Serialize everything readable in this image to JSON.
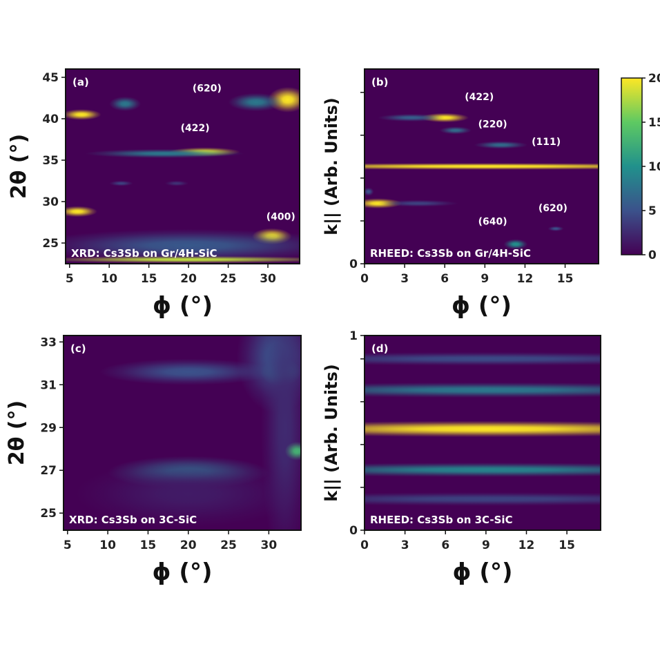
{
  "colors": {
    "colormap": [
      "#440154",
      "#3b528b",
      "#21918c",
      "#5ec962",
      "#fde725"
    ],
    "background": "#ffffff",
    "label_text": "#ffffff"
  },
  "colorbar": {
    "min": 0,
    "max": 20,
    "ticks": [
      "20",
      "15",
      "10",
      "5",
      "0"
    ]
  },
  "chart_data": [
    {
      "type": "heatmap",
      "panel_label": "(a)",
      "inset_label": "XRD: Cs3Sb on Gr/4H-SiC",
      "xlabel": "ϕ (°)",
      "ylabel": "2θ (°)",
      "xlim": [
        4.5,
        34
      ],
      "ylim": [
        22.5,
        46
      ],
      "xticks": [
        "5",
        "10",
        "15",
        "20",
        "25",
        "30"
      ],
      "yticks": [
        "25",
        "30",
        "35",
        "40",
        "45"
      ],
      "annotations": [
        {
          "text": "(620)",
          "x": 20.5,
          "y": 43.3
        },
        {
          "text": "(422)",
          "x": 19,
          "y": 38.5
        },
        {
          "text": "(400)",
          "x": 29.8,
          "y": 27.8
        }
      ],
      "features": [
        {
          "x": 22,
          "y": 36,
          "sx": 4.5,
          "sy": 0.25,
          "v": 19
        },
        {
          "x": 17,
          "y": 35.8,
          "sx": 10,
          "sy": 0.25,
          "v": 8
        },
        {
          "x": 6.5,
          "y": 40.5,
          "sx": 2.5,
          "sy": 0.3,
          "v": 20
        },
        {
          "x": 12,
          "y": 41.8,
          "sx": 2,
          "sy": 0.4,
          "v": 8
        },
        {
          "x": 32.5,
          "y": 42.3,
          "sx": 2.5,
          "sy": 0.7,
          "v": 20
        },
        {
          "x": 28.5,
          "y": 42,
          "sx": 3.5,
          "sy": 0.5,
          "v": 8
        },
        {
          "x": 6.0,
          "y": 28.8,
          "sx": 2.5,
          "sy": 0.3,
          "v": 20
        },
        {
          "x": 11.5,
          "y": 32.2,
          "sx": 1.5,
          "sy": 0.15,
          "v": 4
        },
        {
          "x": 18.5,
          "y": 32.2,
          "sx": 1.5,
          "sy": 0.15,
          "v": 3
        },
        {
          "x": 30.5,
          "y": 25.8,
          "sx": 2.5,
          "sy": 0.45,
          "v": 20
        },
        {
          "x": 20,
          "y": 24.7,
          "sx": 20,
          "sy": 0.9,
          "v": 5.5
        },
        {
          "x": 20,
          "y": 23.0,
          "sx": 20,
          "sy": 0.2,
          "v": 18
        }
      ]
    },
    {
      "type": "heatmap",
      "panel_label": "(b)",
      "inset_label": "RHEED: Cs3Sb on Gr/4H-SiC",
      "xlabel": "ϕ (°)",
      "ylabel": "k|| (Arb. Units)",
      "xlim": [
        0,
        17.5
      ],
      "ylim": [
        0,
        1
      ],
      "xticks": [
        "0",
        "3",
        "6",
        "9",
        "12",
        "15"
      ],
      "yticks": [
        "0"
      ],
      "annotations": [
        {
          "text": "(422)",
          "x": 7.5,
          "y": 0.84
        },
        {
          "text": "(220)",
          "x": 8.5,
          "y": 0.7
        },
        {
          "text": "(111)",
          "x": 12.5,
          "y": 0.61
        },
        {
          "text": "(620)",
          "x": 13.0,
          "y": 0.27
        },
        {
          "text": "(640)",
          "x": 8.5,
          "y": 0.2
        }
      ],
      "features": [
        {
          "x": 9,
          "y": 0.5,
          "sx": 20,
          "sy": 0.008,
          "v": 20
        },
        {
          "x": 6.0,
          "y": 0.75,
          "sx": 1.8,
          "sy": 0.011,
          "v": 20
        },
        {
          "x": 3.5,
          "y": 0.75,
          "sx": 2.5,
          "sy": 0.009,
          "v": 6
        },
        {
          "x": 6.8,
          "y": 0.685,
          "sx": 1.2,
          "sy": 0.009,
          "v": 7
        },
        {
          "x": 10.2,
          "y": 0.61,
          "sx": 2.0,
          "sy": 0.009,
          "v": 7
        },
        {
          "x": 1.0,
          "y": 0.31,
          "sx": 1.8,
          "sy": 0.012,
          "v": 20
        },
        {
          "x": 4,
          "y": 0.31,
          "sx": 3,
          "sy": 0.008,
          "v": 4
        },
        {
          "x": 0.3,
          "y": 0.37,
          "sx": 0.4,
          "sy": 0.01,
          "v": 5
        },
        {
          "x": 11.3,
          "y": 0.1,
          "sx": 0.9,
          "sy": 0.012,
          "v": 10
        },
        {
          "x": 14.3,
          "y": 0.18,
          "sx": 0.6,
          "sy": 0.006,
          "v": 5
        }
      ]
    },
    {
      "type": "heatmap",
      "panel_label": "(c)",
      "inset_label": "XRD: Cs3Sb on 3C-SiC",
      "xlabel": "ϕ (°)",
      "ylabel": "2θ (°)",
      "xlim": [
        4.5,
        34
      ],
      "ylim": [
        24.2,
        33.3
      ],
      "xticks": [
        "5",
        "10",
        "15",
        "20",
        "25",
        "30"
      ],
      "yticks": [
        "25",
        "27",
        "29",
        "31",
        "33"
      ],
      "annotations": [],
      "features": [
        {
          "x": 20,
          "y": 31.6,
          "sx": 11,
          "sy": 0.28,
          "v": 5
        },
        {
          "x": 31.5,
          "y": 31.6,
          "sx": 2.5,
          "sy": 0.3,
          "v": 9
        },
        {
          "x": 31,
          "y": 32.3,
          "sx": 5,
          "sy": 1.2,
          "v": 5
        },
        {
          "x": 32,
          "y": 29,
          "sx": 3,
          "sy": 3,
          "v": 2.5
        },
        {
          "x": 20,
          "y": 26.9,
          "sx": 10,
          "sy": 0.35,
          "v": 6.5
        },
        {
          "x": 33.5,
          "y": 27.9,
          "sx": 1.5,
          "sy": 0.2,
          "v": 13
        },
        {
          "x": 20,
          "y": 25.9,
          "sx": 14,
          "sy": 0.7,
          "v": 1.6
        }
      ]
    },
    {
      "type": "heatmap",
      "panel_label": "(d)",
      "inset_label": "RHEED: Cs3Sb on 3C-SiC",
      "xlabel": "ϕ (°)",
      "ylabel": "k|| (Arb. Units)",
      "xlim": [
        0,
        17.5
      ],
      "ylim": [
        0,
        1
      ],
      "xticks": [
        "0",
        "3",
        "6",
        "9",
        "12",
        "15"
      ],
      "yticks": [
        "0",
        "1"
      ],
      "annotations": [],
      "features": [
        {
          "x": 9,
          "y": 0.52,
          "sx": 20,
          "sy": 0.019,
          "v": 20
        },
        {
          "x": 9,
          "y": 0.72,
          "sx": 20,
          "sy": 0.018,
          "v": 8
        },
        {
          "x": 9,
          "y": 0.31,
          "sx": 20,
          "sy": 0.017,
          "v": 9
        },
        {
          "x": 9,
          "y": 0.88,
          "sx": 20,
          "sy": 0.016,
          "v": 4.5
        },
        {
          "x": 9,
          "y": 0.16,
          "sx": 20,
          "sy": 0.016,
          "v": 4
        }
      ]
    }
  ]
}
